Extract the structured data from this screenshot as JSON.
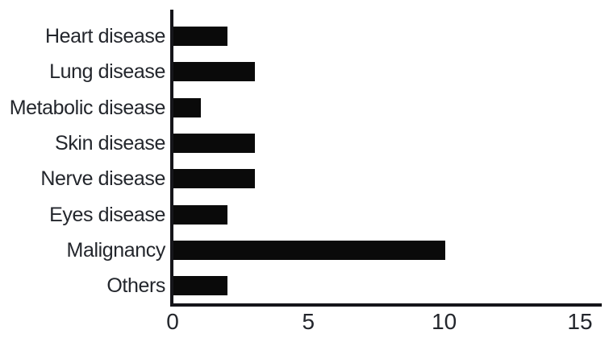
{
  "chart_data": {
    "type": "bar",
    "orientation": "horizontal",
    "title": "",
    "xlabel": "",
    "ylabel": "",
    "categories": [
      "Heart disease",
      "Lung disease",
      "Metabolic disease",
      "Skin disease",
      "Nerve disease",
      "Eyes disease",
      "Malignancy",
      "Others"
    ],
    "values": [
      2,
      3,
      1,
      3,
      3,
      2,
      10,
      2
    ],
    "xlim": [
      0,
      15
    ],
    "xticks": [
      0,
      5,
      10,
      15
    ],
    "grid": false,
    "legend": false,
    "bar_color": "#0a0a0a",
    "axis_color": "#15151a",
    "text_color": "#23262c"
  }
}
